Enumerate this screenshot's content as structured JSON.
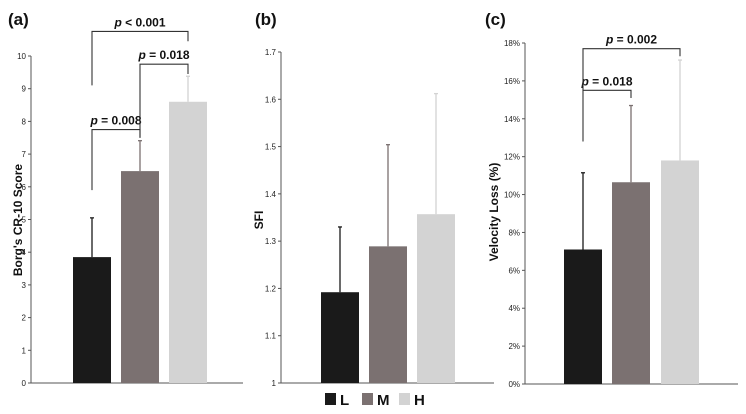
{
  "chart_data": [
    {
      "type": "bar",
      "panel_label": "(a)",
      "ylabel": "Borg's CR-10 Score",
      "categories": [
        "L",
        "M",
        "H"
      ],
      "values": [
        3.85,
        6.48,
        8.6
      ],
      "errors": [
        1.2,
        0.93,
        0.78
      ],
      "ylim": [
        0,
        10
      ],
      "yticks": [
        0,
        1,
        2,
        3,
        4,
        5,
        6,
        7,
        8,
        9,
        10
      ],
      "ytick_labels": [
        "0",
        "1",
        "2",
        "3",
        "4",
        "5",
        "6",
        "7",
        "8",
        "9",
        "10"
      ],
      "comparisons": [
        {
          "from": 0,
          "to": 1,
          "level": 7.75,
          "drop_from": 5.9,
          "drop_to": 7.5,
          "prefix": "p",
          "text": " = 0.008"
        },
        {
          "from": 1,
          "to": 2,
          "level": 9.75,
          "drop_from": 7.5,
          "drop_to": 9.45,
          "prefix": "p",
          "text": " = 0.018"
        },
        {
          "from": 0,
          "to": 2,
          "level": 10.75,
          "drop_from": 9.1,
          "drop_to": 10.45,
          "prefix": "p",
          "text": " < 0.001"
        }
      ]
    },
    {
      "type": "bar",
      "panel_label": "(b)",
      "ylabel": "SFI",
      "categories": [
        "L",
        "M",
        "H"
      ],
      "values": [
        1.192,
        1.289,
        1.357
      ],
      "errors": [
        0.138,
        0.215,
        0.255
      ],
      "ylim": [
        1,
        1.7
      ],
      "yticks": [
        1,
        1.1,
        1.2,
        1.3,
        1.4,
        1.5,
        1.6,
        1.7
      ],
      "ytick_labels": [
        "1",
        "1.1",
        "1.2",
        "1.3",
        "1.4",
        "1.5",
        "1.6",
        "1.7"
      ],
      "comparisons": []
    },
    {
      "type": "bar",
      "panel_label": "(c)",
      "ylabel": "Velocity Loss (%)",
      "categories": [
        "L",
        "M",
        "H"
      ],
      "values": [
        7.1,
        10.65,
        11.8
      ],
      "errors": [
        4.05,
        4.05,
        5.3
      ],
      "ylim": [
        0,
        18
      ],
      "yticks": [
        0,
        2,
        4,
        6,
        8,
        10,
        12,
        14,
        16,
        18
      ],
      "ytick_labels": [
        "0%",
        "2%",
        "4%",
        "6%",
        "8%",
        "10%",
        "12%",
        "14%",
        "16%",
        "18%"
      ],
      "comparisons": [
        {
          "from": 0,
          "to": 1,
          "level": 15.5,
          "drop_from": 12.8,
          "drop_to": 15.1,
          "prefix": "p",
          "text": " = 0.018"
        },
        {
          "from": 0,
          "to": 2,
          "level": 17.7,
          "drop_from": 15.5,
          "drop_to": 17.3,
          "prefix": "p",
          "text": " = 0.002"
        }
      ]
    }
  ],
  "legend": {
    "position": "bottom-center",
    "items": [
      {
        "label": "L",
        "color": "#1a1a1a"
      },
      {
        "label": "M",
        "color": "#7b7171"
      },
      {
        "label": "H",
        "color": "#d3d3d3"
      }
    ]
  },
  "colors": [
    "#1a1a1a",
    "#7b7171",
    "#d3d3d3"
  ]
}
